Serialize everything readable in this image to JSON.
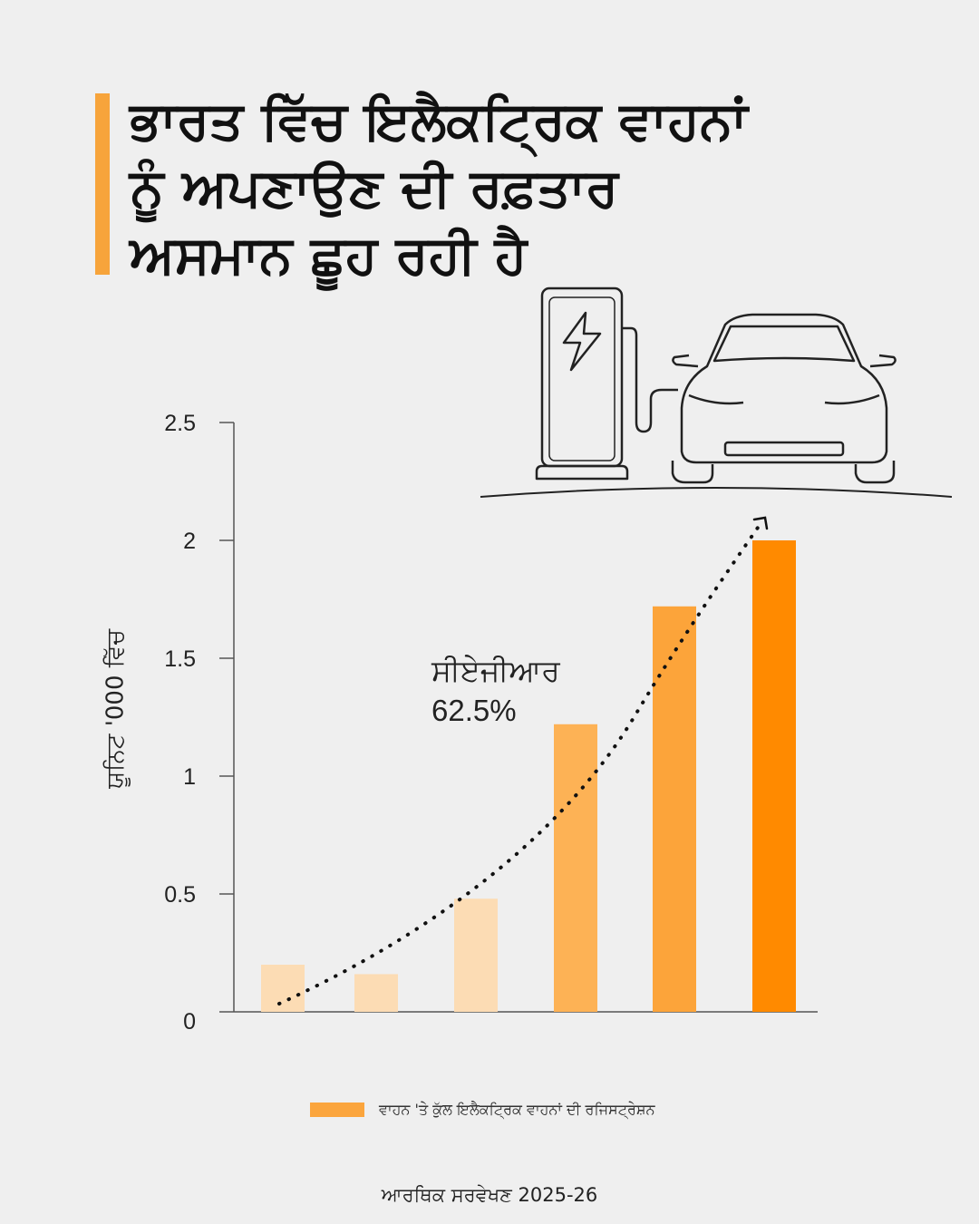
{
  "title": "ਭਾਰਤ ਵਿੱਚ ਇਲੈਕਟ੍ਰਿਕ ਵਾਹਨਾਂ ਨੂੰ ਅਪਣਾਉਣ ਦੀ ਰਫ਼ਤਾਰ ਅਸਮਾਨ ਛੂਹ ਰਹੀ ਹੈ",
  "illustration": {
    "icons": [
      "charging-station-icon",
      "lightning-bolt-icon",
      "electric-car-icon"
    ]
  },
  "annotation": {
    "label": "ਸੀਏਜੀਆਰ",
    "value": "62.5%"
  },
  "legend": {
    "label": "ਵਾਹਨ 'ਤੇ ਕੁੱਲ ਇਲੈਕਟ੍ਰਿਕ ਵਾਹਨਾਂ ਦੀ ਰਜਿਸਟ੍ਰੇਸ਼ਨ"
  },
  "source": "ਆਰਥਿਕ ਸਰਵੇਖਣ 2025-26",
  "chart_data": {
    "type": "bar",
    "title": "",
    "xlabel": "",
    "ylabel": "ਯੂਨਿਟ '000 ਵਿੱਚ",
    "ylim": [
      0,
      2.5
    ],
    "yticks": [
      "0",
      "0.5",
      "1",
      "1.5",
      "2",
      "2.5"
    ],
    "grid": false,
    "legend_position": "bottom",
    "trendline": "dotted-exponential",
    "series": [
      {
        "values": [
          0.2,
          0.16,
          0.48,
          1.22,
          1.72,
          2.0
        ],
        "colors": [
          "#fcdcb4",
          "#fcdcb4",
          "#fcdcb4",
          "#fdb255",
          "#fca43a",
          "#ff8a00"
        ]
      }
    ]
  }
}
